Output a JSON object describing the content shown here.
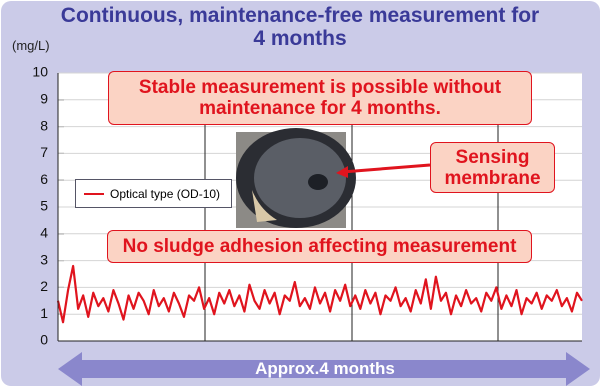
{
  "chart_data": {
    "type": "line",
    "title": "Continuous, maintenance-free measurement for 4 months",
    "y_label": "(mg/L)",
    "ylim": [
      0,
      10
    ],
    "yticks": [
      0,
      1,
      2,
      3,
      4,
      5,
      6,
      7,
      8,
      9,
      10
    ],
    "grid": true,
    "legend": "left",
    "series": [
      {
        "name": "Optical type (OD-10)",
        "color": "#e0141e",
        "values": [
          1.5,
          0.7,
          1.9,
          2.8,
          1.2,
          1.7,
          0.9,
          1.8,
          1.3,
          1.6,
          1.1,
          1.9,
          1.4,
          0.8,
          1.7,
          1.2,
          1.8,
          1.5,
          1.0,
          1.9,
          1.3,
          1.6,
          1.1,
          1.8,
          1.4,
          0.9,
          1.7,
          1.5,
          2.0,
          1.2,
          1.6,
          1.0,
          1.8,
          1.4,
          1.9,
          1.3,
          1.7,
          1.1,
          2.1,
          1.5,
          1.2,
          1.9,
          1.4,
          1.8,
          1.0,
          1.7,
          1.5,
          2.2,
          1.3,
          1.6,
          1.2,
          2.0,
          1.4,
          1.8,
          1.1,
          1.9,
          1.5,
          2.1,
          1.3,
          1.7,
          1.2,
          1.9,
          1.4,
          1.8,
          1.0,
          1.7,
          1.5,
          2.0,
          1.3,
          1.6,
          1.1,
          1.9,
          1.4,
          2.3,
          1.2,
          2.4,
          1.5,
          1.8,
          1.0,
          1.7,
          1.3,
          1.9,
          1.4,
          1.6,
          1.1,
          1.8,
          1.5,
          2.0,
          1.2,
          1.7,
          1.3,
          1.9,
          1.0,
          1.6,
          1.4,
          1.8,
          1.2,
          1.7,
          1.5,
          1.9,
          1.3,
          1.6,
          1.1,
          1.8,
          1.5
        ]
      }
    ],
    "annotations": [
      "Stable measurement is possible without maintenance for 4 months.",
      "Sensing membrane",
      "No sludge adhesion affecting measurement"
    ],
    "span_label": "Approx.4 months"
  }
}
